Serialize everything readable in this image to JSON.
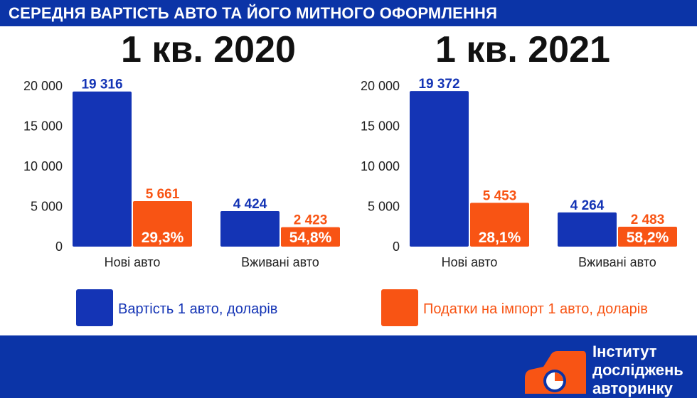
{
  "header": {
    "title": "СЕРЕДНЯ ВАРТІСТЬ АВТО ТА ЙОГО МИТНОГО ОФОРМЛЕННЯ"
  },
  "colors": {
    "brand_blue": "#0b34a7",
    "bar_blue": "#1434b5",
    "bar_orange": "#f85414"
  },
  "chart_data": [
    {
      "type": "bar",
      "title": "1 кв. 2020",
      "categories": [
        "Нові авто",
        "Вживані авто"
      ],
      "ylim": [
        0,
        20000
      ],
      "yticks": [
        {
          "value": 0,
          "label": "0"
        },
        {
          "value": 5000,
          "label": "5 000"
        },
        {
          "value": 10000,
          "label": "10 000"
        },
        {
          "value": 15000,
          "label": "15 000"
        },
        {
          "value": 20000,
          "label": "20 000"
        }
      ],
      "series": [
        {
          "name": "Вартість 1 авто, доларів",
          "values": [
            19316,
            4424
          ],
          "value_labels": [
            "19 316",
            "4 424"
          ]
        },
        {
          "name": "Податки на імпорт 1 авто, доларів",
          "values": [
            5661,
            2423
          ],
          "value_labels": [
            "5 661",
            "2 423"
          ],
          "share_labels": [
            "29,3%",
            "54,8%"
          ]
        }
      ]
    },
    {
      "type": "bar",
      "title": "1 кв. 2021",
      "categories": [
        "Нові авто",
        "Вживані авто"
      ],
      "ylim": [
        0,
        20000
      ],
      "yticks": [
        {
          "value": 0,
          "label": "0"
        },
        {
          "value": 5000,
          "label": "5 000"
        },
        {
          "value": 10000,
          "label": "10 000"
        },
        {
          "value": 15000,
          "label": "15 000"
        },
        {
          "value": 20000,
          "label": "20 000"
        }
      ],
      "series": [
        {
          "name": "Вартість 1 авто, доларів",
          "values": [
            19372,
            4264
          ],
          "value_labels": [
            "19 372",
            "4 264"
          ]
        },
        {
          "name": "Податки на імпорт 1 авто, доларів",
          "values": [
            5453,
            2483
          ],
          "value_labels": [
            "5 453",
            "2 483"
          ],
          "share_labels": [
            "28,1%",
            "58,2%"
          ]
        }
      ]
    }
  ],
  "legend": {
    "cost_label": "Вартість 1 авто, доларів",
    "tax_label": "Податки на імпорт 1 авто, доларів"
  },
  "logo": {
    "line1": "Інститут",
    "line2": "досліджень",
    "line3": "авторинку",
    "icon": "car-pie-icon"
  }
}
